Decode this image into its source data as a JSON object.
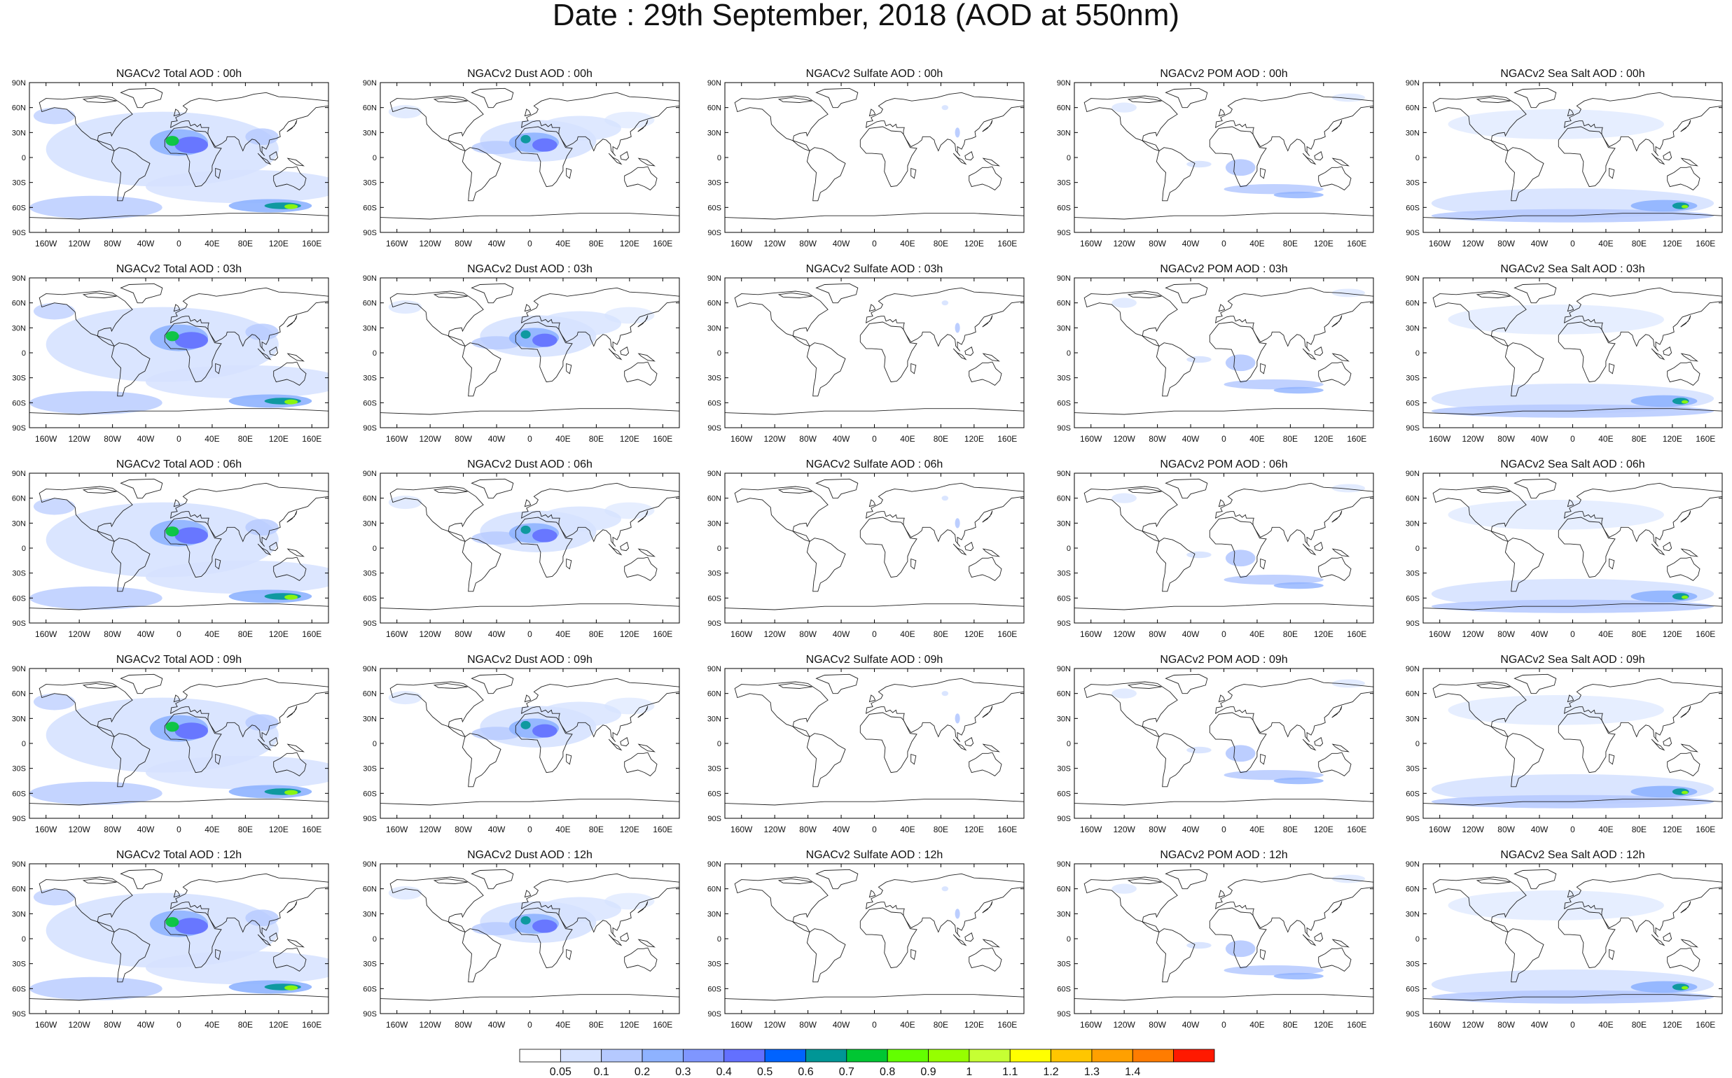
{
  "title": "Date : 29th September, 2018 (AOD at 550nm)",
  "lat_labels": [
    "90N",
    "60N",
    "30N",
    "0",
    "30S",
    "60S",
    "90S"
  ],
  "lon_labels": [
    "160W",
    "120W",
    "80W",
    "40W",
    "0",
    "40E",
    "80E",
    "120E",
    "160E"
  ],
  "species": [
    {
      "id": "total",
      "titles": [
        "NGACv2 Total AOD : 00h",
        "NGACv2 Total AOD : 03h",
        "NGACv2 Total AOD : 06h",
        "NGACv2 Total AOD : 09h",
        "NGACv2 Total AOD  : 12h"
      ]
    },
    {
      "id": "dust",
      "titles": [
        "NGACv2 Dust AOD : 00h",
        "NGACv2 Dust AOD : 03h",
        "NGACv2 Dust AOD : 06h",
        "NGACv2 Dust AOD : 09h",
        "NGACv2 Dust AOD : 12h"
      ]
    },
    {
      "id": "sulfate",
      "titles": [
        "NGACv2 Sulfate AOD : 00h",
        "NGACv2 Sulfate AOD : 03h",
        "NGACv2 Sulfate AOD : 06h",
        "NGACv2 Sulfate AOD : 09h",
        "NGACv2 Sulfate AOD : 12h"
      ]
    },
    {
      "id": "pom",
      "titles": [
        "NGACv2 POM AOD : 00h",
        "NGACv2 POM AOD : 03h",
        "NGACv2 POM AOD : 06h",
        "NGACv2 POM AOD : 09h",
        "NGACv2 POM  AOD : 12h"
      ]
    },
    {
      "id": "seasalt",
      "titles": [
        "NGACv2 Sea Salt AOD : 00h",
        "NGACv2 Sea Salt AOD : 03h",
        "NGACv2 Sea Salt AOD : 06h",
        "NGACv2 Sea Salt  AOD : 09h",
        "NGACv2 Sea Salt  AOD : 12h"
      ]
    }
  ],
  "colorbar": {
    "labels": [
      "0.05",
      "0.1",
      "0.2",
      "0.3",
      "0.4",
      "0.5",
      "0.6",
      "0.7",
      "0.8",
      "0.9",
      "1",
      "1.1",
      "1.2",
      "1.3",
      "1.4"
    ],
    "colors": [
      "#ffffff",
      "#d6e2ff",
      "#b5c9ff",
      "#8eb2ff",
      "#7f96ff",
      "#6370ff",
      "#0063ff",
      "#009696",
      "#00c633",
      "#63ff00",
      "#96ff00",
      "#c6ff33",
      "#ffff00",
      "#ffc600",
      "#ffa000",
      "#ff7c00",
      "#ff1900"
    ]
  }
}
